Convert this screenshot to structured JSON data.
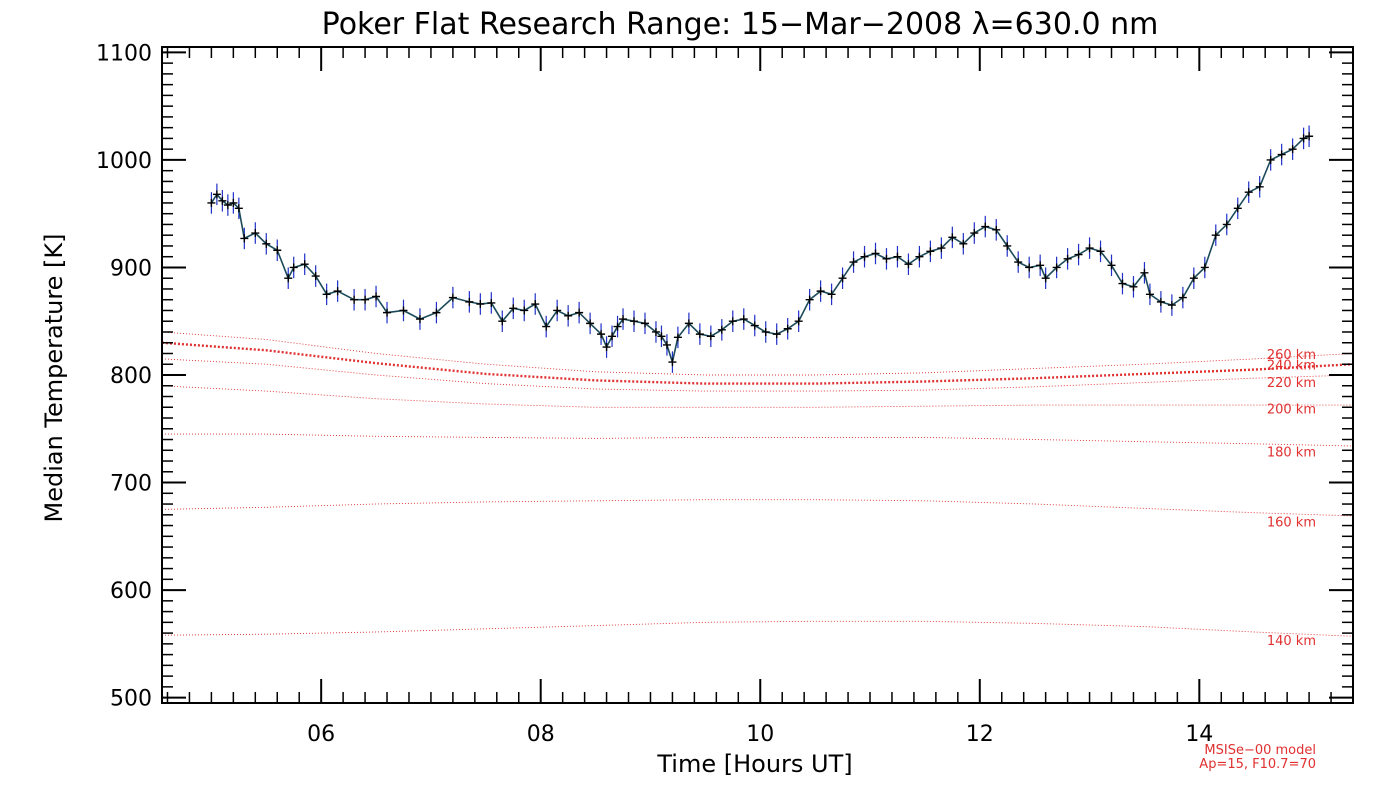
{
  "chart_data": {
    "type": "line",
    "title": "Poker Flat Research Range: 15−Mar−2008 λ=630.0 nm",
    "xlabel": "Time [Hours UT]",
    "ylabel": "Median Temperature [K]",
    "xlim": [
      4.55,
      15.4
    ],
    "ylim": [
      495,
      1105
    ],
    "x_ticks": [
      6,
      8,
      10,
      12,
      14
    ],
    "x_tick_labels": [
      "06",
      "08",
      "10",
      "12",
      "14"
    ],
    "y_ticks": [
      500,
      600,
      700,
      800,
      900,
      1000,
      1100
    ],
    "y_tick_labels": [
      "500",
      "600",
      "700",
      "800",
      "900",
      "1000",
      "1100"
    ],
    "grid": false,
    "colors": {
      "measurement_line": "#1b4a5a",
      "error_bar": "#2030c8",
      "marker": "#000000",
      "model": "#e03030"
    },
    "measurement": {
      "x": [
        5.0,
        5.05,
        5.1,
        5.15,
        5.2,
        5.25,
        5.3,
        5.4,
        5.5,
        5.6,
        5.7,
        5.75,
        5.85,
        5.95,
        6.05,
        6.15,
        6.3,
        6.4,
        6.5,
        6.6,
        6.75,
        6.9,
        7.05,
        7.2,
        7.35,
        7.45,
        7.55,
        7.65,
        7.75,
        7.85,
        7.95,
        8.05,
        8.15,
        8.25,
        8.35,
        8.45,
        8.55,
        8.6,
        8.65,
        8.7,
        8.75,
        8.85,
        8.95,
        9.05,
        9.1,
        9.15,
        9.2,
        9.25,
        9.35,
        9.45,
        9.55,
        9.65,
        9.75,
        9.85,
        9.95,
        10.05,
        10.15,
        10.25,
        10.35,
        10.45,
        10.55,
        10.65,
        10.75,
        10.85,
        10.95,
        11.05,
        11.15,
        11.25,
        11.35,
        11.45,
        11.55,
        11.65,
        11.75,
        11.85,
        11.95,
        12.05,
        12.15,
        12.25,
        12.35,
        12.45,
        12.55,
        12.6,
        12.7,
        12.8,
        12.9,
        13.0,
        13.1,
        13.2,
        13.3,
        13.4,
        13.5,
        13.55,
        13.65,
        13.75,
        13.85,
        13.95,
        14.05,
        14.15,
        14.25,
        14.35,
        14.45,
        14.55,
        14.65,
        14.75,
        14.85,
        14.95,
        15.0
      ],
      "y": [
        960,
        968,
        962,
        958,
        960,
        955,
        927,
        932,
        922,
        916,
        890,
        900,
        903,
        892,
        875,
        878,
        870,
        870,
        873,
        858,
        860,
        852,
        858,
        872,
        868,
        866,
        867,
        850,
        862,
        860,
        866,
        845,
        860,
        855,
        858,
        848,
        838,
        826,
        836,
        845,
        852,
        850,
        848,
        840,
        836,
        828,
        812,
        835,
        848,
        838,
        836,
        842,
        850,
        852,
        846,
        840,
        838,
        843,
        850,
        870,
        878,
        875,
        890,
        905,
        910,
        913,
        908,
        910,
        903,
        910,
        915,
        918,
        928,
        922,
        932,
        938,
        935,
        920,
        905,
        900,
        902,
        890,
        900,
        908,
        912,
        918,
        915,
        902,
        885,
        882,
        895,
        875,
        868,
        865,
        872,
        890,
        900,
        930,
        940,
        955,
        970,
        975,
        1000,
        1005,
        1010,
        1020,
        1022
      ],
      "error": 10
    },
    "model": {
      "name": "MSISe−00 model",
      "params": "Ap=15, F10.7=70",
      "x": [
        4.55,
        5.5,
        6.5,
        7.5,
        8.5,
        9.5,
        10.5,
        11.5,
        12.5,
        13.5,
        14.5,
        15.4
      ],
      "series": [
        {
          "label": "260 km",
          "values": [
            840,
            833,
            820,
            810,
            803,
            800,
            800,
            802,
            806,
            810,
            815,
            820
          ]
        },
        {
          "label": "240 km",
          "values": [
            830,
            823,
            811,
            801,
            795,
            792,
            792,
            794,
            797,
            801,
            805,
            810
          ]
        },
        {
          "label": "220 km",
          "values": [
            815,
            810,
            800,
            792,
            787,
            785,
            785,
            786,
            789,
            793,
            797,
            800
          ]
        },
        {
          "label": "200 km",
          "values": [
            790,
            785,
            778,
            773,
            770,
            770,
            770,
            771,
            772,
            772,
            772,
            772
          ]
        },
        {
          "label": "180 km",
          "values": [
            745,
            745,
            743,
            742,
            741,
            742,
            742,
            742,
            740,
            738,
            736,
            734
          ]
        },
        {
          "label": "160 km",
          "values": [
            675,
            677,
            680,
            682,
            683,
            684,
            684,
            683,
            680,
            676,
            672,
            669
          ]
        },
        {
          "label": "140 km",
          "values": [
            558,
            559,
            561,
            564,
            567,
            570,
            571,
            571,
            569,
            566,
            561,
            557
          ]
        }
      ],
      "label_y": [
        815,
        805,
        789,
        764,
        724,
        659,
        549
      ]
    }
  }
}
